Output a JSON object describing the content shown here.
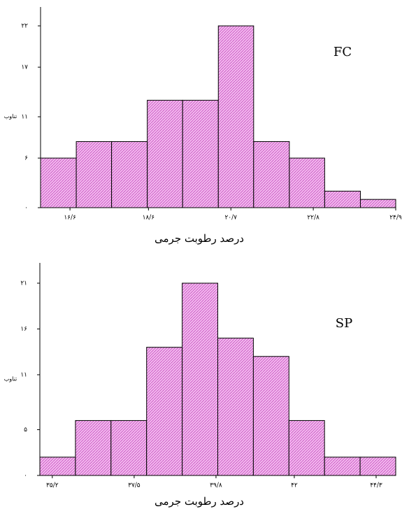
{
  "chart_data": [
    {
      "type": "histogram",
      "title": "FC",
      "xlabel": "درصد رطوبت جرمی",
      "ylabel": "تناوب",
      "bins": [
        15.85,
        16.76,
        17.66,
        18.57,
        19.47,
        20.38,
        21.28,
        22.19,
        23.09,
        24.0,
        24.9
      ],
      "values": [
        6,
        8,
        8,
        13,
        13,
        22,
        8,
        6,
        2,
        1
      ],
      "color": "#f2b8ee",
      "hatch_color": "#c040b8",
      "xlim": [
        15.85,
        24.9
      ],
      "xticks": [
        {
          "value": 16.6,
          "label": "۱۶/۶"
        },
        {
          "value": 18.6,
          "label": "۱۸/۶"
        },
        {
          "value": 20.7,
          "label": "۲۰/۷"
        },
        {
          "value": 22.8,
          "label": "۲۲/۸"
        },
        {
          "value": 24.9,
          "label": "۲۴/۹"
        }
      ],
      "ylim": [
        0,
        22
      ],
      "yticks": [
        {
          "value": 0,
          "label": "۰"
        },
        {
          "value": 6,
          "label": "۶"
        },
        {
          "value": 11,
          "label": "۱۱"
        },
        {
          "value": 17,
          "label": "۱۷"
        },
        {
          "value": 22,
          "label": "۲۲"
        }
      ]
    },
    {
      "type": "histogram",
      "title": "SP",
      "xlabel": "درصد رطوبت جرمی",
      "ylabel": "تناوب",
      "bins": [
        34.85,
        35.85,
        36.85,
        37.85,
        38.85,
        39.85,
        40.85,
        41.85,
        42.85,
        43.85,
        44.85
      ],
      "values": [
        2,
        6,
        6,
        14,
        21,
        15,
        13,
        6,
        2,
        2
      ],
      "color": "#f2b8ee",
      "hatch_color": "#c040b8",
      "xlim": [
        34.85,
        44.85
      ],
      "xticks": [
        {
          "value": 35.2,
          "label": "۳۵/۲"
        },
        {
          "value": 37.5,
          "label": "۳۷/۵"
        },
        {
          "value": 39.8,
          "label": "۳۹/۸"
        },
        {
          "value": 42,
          "label": "۴۲"
        },
        {
          "value": 44.3,
          "label": "۴۴/۳"
        }
      ],
      "ylim": [
        0,
        21
      ],
      "yticks": [
        {
          "value": 0,
          "label": "۰"
        },
        {
          "value": 5,
          "label": "۵"
        },
        {
          "value": 11,
          "label": "۱۱"
        },
        {
          "value": 16,
          "label": "۱۶"
        },
        {
          "value": 21,
          "label": "۲۱"
        }
      ]
    }
  ]
}
